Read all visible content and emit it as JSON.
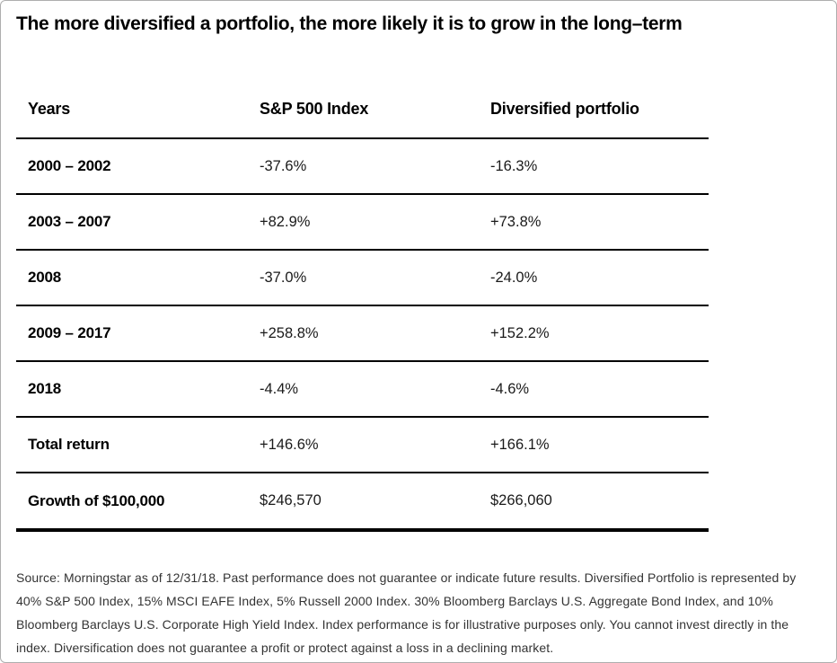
{
  "title": "The more diversified a portfolio, the more likely it is to grow in the long–term",
  "table": {
    "headers": [
      "Years",
      "S&P 500 Index",
      "Diversified portfolio"
    ],
    "rows": [
      {
        "years": "2000 – 2002",
        "sp500": "-37.6%",
        "diversified": "-16.3%"
      },
      {
        "years": "2003 – 2007",
        "sp500": "+82.9%",
        "diversified": "+73.8%"
      },
      {
        "years": "2008",
        "sp500": "-37.0%",
        "diversified": "-24.0%"
      },
      {
        "years": "2009 – 2017",
        "sp500": "+258.8%",
        "diversified": "+152.2%"
      },
      {
        "years": "2018",
        "sp500": "-4.4%",
        "diversified": "-4.6%"
      },
      {
        "years": "Total return",
        "sp500": "+146.6%",
        "diversified": "+166.1%"
      },
      {
        "years": "Growth of $100,000",
        "sp500": "$246,570",
        "diversified": "$266,060"
      }
    ]
  },
  "footnote": "Source: Morningstar as of 12/31/18. Past performance does not guarantee or indicate future results. Diversified Portfolio is represented by 40% S&P 500 Index, 15% MSCI EAFE Index, 5% Russell 2000 Index. 30% Bloomberg Barclays U.S. Aggregate Bond Index, and 10% Bloomberg Barclays U.S. Corporate High Yield Index. Index performance is for illustrative purposes only. You cannot invest directly in the index. Diversification does not guarantee a profit or protect against a loss in a declining market.",
  "colors": {
    "text": "#000000",
    "value_text": "#1a1a1a",
    "footnote_text": "#333333",
    "rule": "#000000",
    "page_border": "#aeaeae",
    "background": "#ffffff"
  },
  "chart_data": {
    "type": "table",
    "title": "The more diversified a portfolio, the more likely it is to grow in the long–term",
    "columns": [
      "Years",
      "S&P 500 Index",
      "Diversified portfolio"
    ],
    "categories": [
      "2000 – 2002",
      "2003 – 2007",
      "2008",
      "2009 – 2017",
      "2018",
      "Total return",
      "Growth of $100,000"
    ],
    "series": [
      {
        "name": "S&P 500 Index",
        "values": [
          "-37.6%",
          "+82.9%",
          "-37.0%",
          "+258.8%",
          "-4.4%",
          "+146.6%",
          "$246,570"
        ]
      },
      {
        "name": "Diversified portfolio",
        "values": [
          "-16.3%",
          "+73.8%",
          "-24.0%",
          "+152.2%",
          "-4.6%",
          "+166.1%",
          "$266,060"
        ]
      }
    ],
    "series_numeric_pct": [
      {
        "name": "S&P 500 Index",
        "values": [
          -37.6,
          82.9,
          -37.0,
          258.8,
          -4.4,
          146.6,
          null
        ]
      },
      {
        "name": "Diversified portfolio",
        "values": [
          -16.3,
          73.8,
          -24.0,
          152.2,
          -4.6,
          166.1,
          null
        ]
      }
    ],
    "growth_of_100000": {
      "S&P 500 Index": 246570,
      "Diversified portfolio": 266060
    }
  }
}
